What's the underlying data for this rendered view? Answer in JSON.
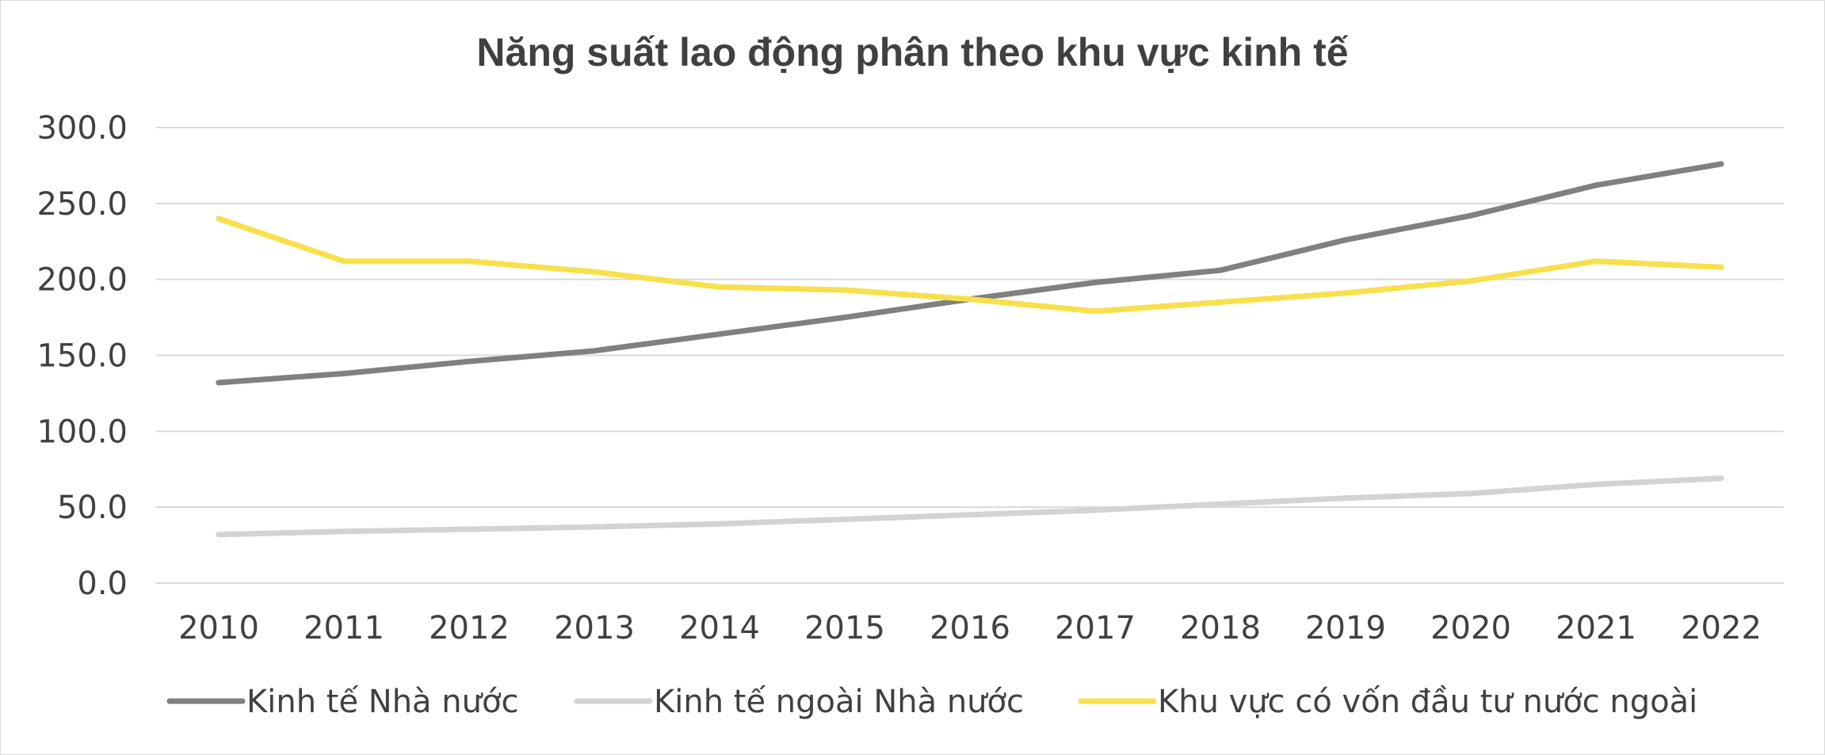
{
  "chart_data": {
    "type": "line",
    "title": "Năng suất lao động phân theo khu vực kinh tế",
    "xlabel": "",
    "ylabel": "",
    "x": [
      "2010",
      "2011",
      "2012",
      "2013",
      "2014",
      "2015",
      "2016",
      "2017",
      "2018",
      "2019",
      "2020",
      "2021",
      "2022"
    ],
    "ylim": [
      0,
      300
    ],
    "yticks": [
      "0.0",
      "50.0",
      "100.0",
      "150.0",
      "200.0",
      "250.0",
      "300.0"
    ],
    "grid": true,
    "legend_position": "bottom",
    "series": [
      {
        "name": "Kinh tế Nhà nước",
        "color": "#808080",
        "values": [
          132,
          138,
          146,
          153,
          164,
          175,
          187,
          198,
          206,
          226,
          242,
          262,
          276
        ]
      },
      {
        "name": "Kinh tế ngoài Nhà nước",
        "color": "#d3d3d3",
        "values": [
          32,
          34,
          35.5,
          37,
          39,
          42,
          45,
          48,
          52,
          56,
          59,
          65,
          69
        ]
      },
      {
        "name": "Khu vực có vốn đầu tư nước ngoài",
        "color": "#f7e04b",
        "values": [
          240,
          212,
          212,
          205,
          195,
          193,
          187,
          179,
          185,
          191,
          199,
          212,
          208
        ]
      }
    ]
  }
}
